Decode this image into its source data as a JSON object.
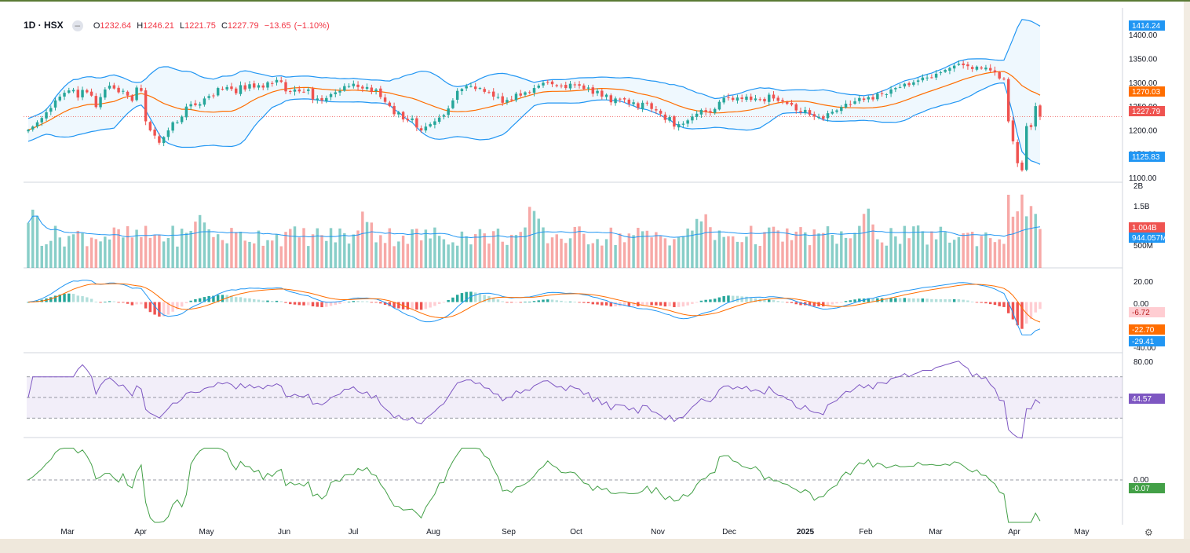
{
  "header": {
    "symbol": "1D · HSX",
    "open_label": "O",
    "open": "1232.64",
    "high_label": "H",
    "high": "1246.21",
    "low_label": "L",
    "low": "1221.75",
    "close_label": "C",
    "close": "1227.79",
    "change": "−13.65",
    "change_pct": "(−1.10%)"
  },
  "x_axis": {
    "months": [
      "Mar",
      "Apr",
      "May",
      "Jun",
      "Jul",
      "Aug",
      "Sep",
      "Oct",
      "Nov",
      "Dec",
      "2025",
      "Feb",
      "Mar",
      "Apr",
      "May"
    ]
  },
  "colors": {
    "up": "#26a69a",
    "down": "#ef5350",
    "bb": "#2196f3",
    "ma": "#ff6d00",
    "rsi": "#7e57c2",
    "ao": "#43a047"
  },
  "chart_data": [
    {
      "type": "candlestick",
      "name": "Price",
      "yticks": [
        "1400.00",
        "1350.00",
        "1300.00",
        "1250.00",
        "1200.00",
        "1150.00",
        "1100.00"
      ],
      "ylim": [
        1090,
        1440
      ],
      "close": [
        1200,
        1207,
        1216,
        1225,
        1237,
        1246,
        1262,
        1270,
        1278,
        1283,
        1284,
        1268,
        1284,
        1279,
        1272,
        1248,
        1269,
        1285,
        1293,
        1287,
        1279,
        1282,
        1272,
        1261,
        1289,
        1282,
        1218,
        1199,
        1188,
        1173,
        1185,
        1199,
        1216,
        1216,
        1228,
        1249,
        1254,
        1252,
        1254,
        1266,
        1271,
        1272,
        1288,
        1285,
        1290,
        1286,
        1277,
        1294,
        1285,
        1296,
        1289,
        1294,
        1289,
        1300,
        1298,
        1305,
        1301,
        1281,
        1280,
        1285,
        1281,
        1280,
        1285,
        1264,
        1266,
        1262,
        1267,
        1275,
        1279,
        1282,
        1292,
        1292,
        1297,
        1290,
        1287,
        1290,
        1280,
        1285,
        1269,
        1259,
        1250,
        1233,
        1237,
        1222,
        1220,
        1224,
        1205,
        1199,
        1207,
        1212,
        1218,
        1226,
        1231,
        1245,
        1262,
        1282,
        1286,
        1292,
        1292,
        1286,
        1288,
        1280,
        1279,
        1270,
        1269,
        1257,
        1263,
        1264,
        1276,
        1272,
        1279,
        1278,
        1288,
        1293,
        1299,
        1300,
        1296,
        1292,
        1293,
        1288,
        1297,
        1294,
        1293,
        1286,
        1289,
        1276,
        1282,
        1270,
        1274,
        1258,
        1266,
        1265,
        1264,
        1255,
        1258,
        1246,
        1257,
        1256,
        1244,
        1241,
        1234,
        1221,
        1227,
        1207,
        1212,
        1213,
        1220,
        1228,
        1234,
        1242,
        1238,
        1236,
        1244,
        1259,
        1267,
        1268,
        1263,
        1268,
        1265,
        1270,
        1263,
        1266,
        1264,
        1260,
        1274,
        1266,
        1261,
        1260,
        1255,
        1253,
        1241,
        1237,
        1242,
        1232,
        1228,
        1227,
        1223,
        1235,
        1238,
        1241,
        1248,
        1255,
        1254,
        1260,
        1267,
        1263,
        1269,
        1264,
        1276,
        1276,
        1275,
        1285,
        1288,
        1290,
        1297,
        1294,
        1300,
        1304,
        1310,
        1310,
        1310,
        1318,
        1321,
        1326,
        1330,
        1335,
        1339,
        1336,
        1334,
        1328,
        1333,
        1329,
        1331,
        1325,
        1321,
        1308,
        1307,
        1218,
        1176,
        1130,
        1115,
        1208,
        1206,
        1250,
        1228
      ]
    },
    {
      "type": "bar",
      "name": "Volume",
      "yticks": [
        "2B",
        "1.5B",
        "500M"
      ],
      "labels": [
        "1.004B",
        "944.057M"
      ]
    },
    {
      "type": "macd",
      "name": "MACD",
      "yticks": [
        "20.00",
        "0.00",
        "-40.00"
      ],
      "labels": [
        "-6.72",
        "-22.70",
        "-29.41"
      ]
    },
    {
      "type": "line",
      "name": "RSI",
      "yticks": [
        "80.00"
      ],
      "labels": [
        "44.57"
      ]
    },
    {
      "type": "line",
      "name": "Oscillator",
      "yticks": [
        "0.00"
      ],
      "labels": [
        "-0.07"
      ]
    }
  ],
  "price_labels": {
    "bb_upper": "1414.24",
    "ma": "1270.03",
    "last": "1227.79",
    "bb_lower": "1125.83"
  },
  "icons": {
    "settings": "gear-icon"
  }
}
